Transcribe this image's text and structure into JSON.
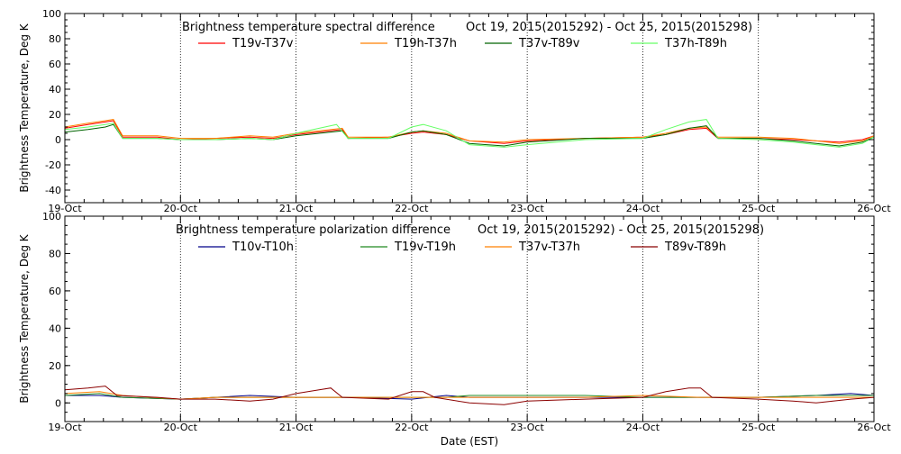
{
  "x_axis": {
    "title": "Date (EST)",
    "ticks": [
      "19-Oct",
      "20-Oct",
      "21-Oct",
      "22-Oct",
      "23-Oct",
      "24-Oct",
      "25-Oct",
      "26-Oct"
    ]
  },
  "chart_data": [
    {
      "type": "line",
      "title": "Brightness temperature spectral difference",
      "date_range": "Oct 19, 2015(2015292) - Oct 25, 2015(2015298)",
      "xlabel": "",
      "ylabel": "Brightness Temperature, Deg K",
      "xlim": [
        0,
        7
      ],
      "ylim": [
        -50,
        100
      ],
      "y_ticks": [
        -40,
        -20,
        0,
        20,
        40,
        60,
        80,
        100
      ],
      "grid": "vertical dotted lines at each day",
      "legend_placement": "top",
      "series": [
        {
          "name": "T19v-T37v",
          "color": "#ff0000",
          "points": [
            [
              0,
              9
            ],
            [
              0.2,
              12
            ],
            [
              0.35,
              14
            ],
            [
              0.42,
              15
            ],
            [
              0.5,
              2
            ],
            [
              0.8,
              2
            ],
            [
              1.0,
              0
            ],
            [
              1.3,
              1
            ],
            [
              1.6,
              2
            ],
            [
              1.8,
              1
            ],
            [
              2.0,
              4
            ],
            [
              2.2,
              6
            ],
            [
              2.4,
              8
            ],
            [
              2.45,
              1
            ],
            [
              2.8,
              2
            ],
            [
              3.0,
              5
            ],
            [
              3.1,
              6
            ],
            [
              3.3,
              4
            ],
            [
              3.5,
              -1
            ],
            [
              3.8,
              -3
            ],
            [
              4.0,
              -1
            ],
            [
              4.5,
              1
            ],
            [
              5.0,
              2
            ],
            [
              5.2,
              4
            ],
            [
              5.4,
              8
            ],
            [
              5.55,
              9
            ],
            [
              5.65,
              1
            ],
            [
              6.0,
              1
            ],
            [
              6.3,
              0
            ],
            [
              6.5,
              -1
            ],
            [
              6.7,
              -2
            ],
            [
              6.9,
              0
            ],
            [
              7.0,
              3
            ]
          ]
        },
        {
          "name": "T19h-T37h",
          "color": "#ff8000",
          "points": [
            [
              0,
              10
            ],
            [
              0.2,
              13
            ],
            [
              0.35,
              15
            ],
            [
              0.42,
              16
            ],
            [
              0.5,
              3
            ],
            [
              0.8,
              3
            ],
            [
              1.0,
              1
            ],
            [
              1.3,
              1
            ],
            [
              1.6,
              3
            ],
            [
              1.8,
              2
            ],
            [
              2.0,
              5
            ],
            [
              2.2,
              7
            ],
            [
              2.4,
              9
            ],
            [
              2.45,
              2
            ],
            [
              2.8,
              2
            ],
            [
              3.0,
              6
            ],
            [
              3.1,
              7
            ],
            [
              3.3,
              5
            ],
            [
              3.5,
              -1
            ],
            [
              3.8,
              -2
            ],
            [
              4.0,
              0
            ],
            [
              4.5,
              1
            ],
            [
              5.0,
              2
            ],
            [
              5.2,
              5
            ],
            [
              5.4,
              9
            ],
            [
              5.55,
              10
            ],
            [
              5.65,
              2
            ],
            [
              6.0,
              2
            ],
            [
              6.3,
              1
            ],
            [
              6.5,
              -1
            ],
            [
              6.7,
              -3
            ],
            [
              6.9,
              -1
            ],
            [
              7.0,
              3
            ]
          ]
        },
        {
          "name": "T37v-T89v",
          "color": "#006400",
          "points": [
            [
              0,
              6
            ],
            [
              0.2,
              8
            ],
            [
              0.35,
              10
            ],
            [
              0.42,
              12
            ],
            [
              0.5,
              1
            ],
            [
              0.8,
              1
            ],
            [
              1.0,
              0
            ],
            [
              1.3,
              0
            ],
            [
              1.6,
              1
            ],
            [
              1.8,
              0
            ],
            [
              2.0,
              3
            ],
            [
              2.2,
              5
            ],
            [
              2.4,
              7
            ],
            [
              2.45,
              1
            ],
            [
              2.8,
              1
            ],
            [
              3.0,
              6
            ],
            [
              3.1,
              7
            ],
            [
              3.3,
              4
            ],
            [
              3.5,
              -3
            ],
            [
              3.8,
              -5
            ],
            [
              4.0,
              -2
            ],
            [
              4.5,
              1
            ],
            [
              5.0,
              1
            ],
            [
              5.2,
              4
            ],
            [
              5.4,
              9
            ],
            [
              5.55,
              11
            ],
            [
              5.65,
              1
            ],
            [
              6.0,
              1
            ],
            [
              6.3,
              -1
            ],
            [
              6.5,
              -3
            ],
            [
              6.7,
              -5
            ],
            [
              6.9,
              -2
            ],
            [
              7.0,
              2
            ]
          ]
        },
        {
          "name": "T37h-T89h",
          "color": "#66ff66",
          "points": [
            [
              0,
              8
            ],
            [
              0.2,
              10
            ],
            [
              0.35,
              12
            ],
            [
              0.42,
              13
            ],
            [
              0.5,
              1
            ],
            [
              0.8,
              1
            ],
            [
              1.0,
              0
            ],
            [
              1.3,
              0
            ],
            [
              1.6,
              1
            ],
            [
              1.8,
              0
            ],
            [
              2.0,
              5
            ],
            [
              2.2,
              9
            ],
            [
              2.35,
              12
            ],
            [
              2.45,
              1
            ],
            [
              2.8,
              1
            ],
            [
              3.0,
              10
            ],
            [
              3.1,
              12
            ],
            [
              3.3,
              7
            ],
            [
              3.5,
              -4
            ],
            [
              3.8,
              -6
            ],
            [
              4.0,
              -4
            ],
            [
              4.5,
              0
            ],
            [
              5.0,
              1
            ],
            [
              5.2,
              8
            ],
            [
              5.4,
              14
            ],
            [
              5.55,
              16
            ],
            [
              5.65,
              1
            ],
            [
              6.0,
              0
            ],
            [
              6.3,
              -2
            ],
            [
              6.5,
              -4
            ],
            [
              6.7,
              -6
            ],
            [
              6.9,
              -3
            ],
            [
              7.0,
              2
            ]
          ]
        }
      ]
    },
    {
      "type": "line",
      "title": "Brightness temperature polarization difference",
      "date_range": "Oct 19, 2015(2015292) - Oct 25, 2015(2015298)",
      "xlabel": "Date (EST)",
      "ylabel": "Brightness Temperature, Deg K",
      "xlim": [
        0,
        7
      ],
      "ylim": [
        -10,
        100
      ],
      "y_ticks": [
        0,
        20,
        40,
        60,
        80,
        100
      ],
      "grid": "vertical dotted lines at each day",
      "legend_placement": "top",
      "series": [
        {
          "name": "T10v-T10h",
          "color": "#00008b",
          "points": [
            [
              0,
              4
            ],
            [
              0.3,
              4
            ],
            [
              0.5,
              3
            ],
            [
              1.0,
              2
            ],
            [
              1.3,
              3
            ],
            [
              1.6,
              4
            ],
            [
              2.0,
              3
            ],
            [
              2.5,
              3
            ],
            [
              3.0,
              2
            ],
            [
              3.3,
              4
            ],
            [
              3.5,
              3
            ],
            [
              4.0,
              3
            ],
            [
              4.5,
              3
            ],
            [
              5.0,
              3
            ],
            [
              5.5,
              3
            ],
            [
              6.0,
              3
            ],
            [
              6.5,
              4
            ],
            [
              6.8,
              5
            ],
            [
              7.0,
              4
            ]
          ]
        },
        {
          "name": "T19v-T19h",
          "color": "#228b22",
          "points": [
            [
              0,
              4
            ],
            [
              0.3,
              5
            ],
            [
              0.5,
              3
            ],
            [
              1.0,
              2
            ],
            [
              1.3,
              3
            ],
            [
              1.6,
              3
            ],
            [
              2.0,
              3
            ],
            [
              2.5,
              3
            ],
            [
              3.0,
              3
            ],
            [
              3.3,
              3
            ],
            [
              3.5,
              4
            ],
            [
              4.0,
              4
            ],
            [
              4.5,
              4
            ],
            [
              5.0,
              3
            ],
            [
              5.5,
              3
            ],
            [
              6.0,
              3
            ],
            [
              6.5,
              4
            ],
            [
              6.8,
              4
            ],
            [
              7.0,
              4
            ]
          ]
        },
        {
          "name": "T37v-T37h",
          "color": "#ff8000",
          "points": [
            [
              0,
              5
            ],
            [
              0.3,
              6
            ],
            [
              0.5,
              4
            ],
            [
              1.0,
              2
            ],
            [
              1.3,
              3
            ],
            [
              1.6,
              3
            ],
            [
              2.0,
              3
            ],
            [
              2.5,
              3
            ],
            [
              3.0,
              3
            ],
            [
              3.3,
              3
            ],
            [
              3.5,
              3
            ],
            [
              4.0,
              3
            ],
            [
              4.5,
              3
            ],
            [
              5.0,
              4
            ],
            [
              5.5,
              3
            ],
            [
              6.0,
              3
            ],
            [
              6.5,
              3
            ],
            [
              6.8,
              3
            ],
            [
              7.0,
              3
            ]
          ]
        },
        {
          "name": "T89v-T89h",
          "color": "#8b0000",
          "points": [
            [
              0,
              7
            ],
            [
              0.2,
              8
            ],
            [
              0.35,
              9
            ],
            [
              0.45,
              4
            ],
            [
              0.8,
              3
            ],
            [
              1.0,
              2
            ],
            [
              1.3,
              2
            ],
            [
              1.6,
              1
            ],
            [
              1.8,
              2
            ],
            [
              2.0,
              5
            ],
            [
              2.2,
              7
            ],
            [
              2.3,
              8
            ],
            [
              2.4,
              3
            ],
            [
              2.8,
              2
            ],
            [
              3.0,
              6
            ],
            [
              3.1,
              6
            ],
            [
              3.2,
              3
            ],
            [
              3.5,
              0
            ],
            [
              3.8,
              -1
            ],
            [
              4.0,
              1
            ],
            [
              4.5,
              2
            ],
            [
              5.0,
              3
            ],
            [
              5.2,
              6
            ],
            [
              5.4,
              8
            ],
            [
              5.5,
              8
            ],
            [
              5.6,
              3
            ],
            [
              6.0,
              2
            ],
            [
              6.3,
              1
            ],
            [
              6.5,
              0
            ],
            [
              6.8,
              2
            ],
            [
              7.0,
              3
            ]
          ]
        }
      ]
    }
  ]
}
